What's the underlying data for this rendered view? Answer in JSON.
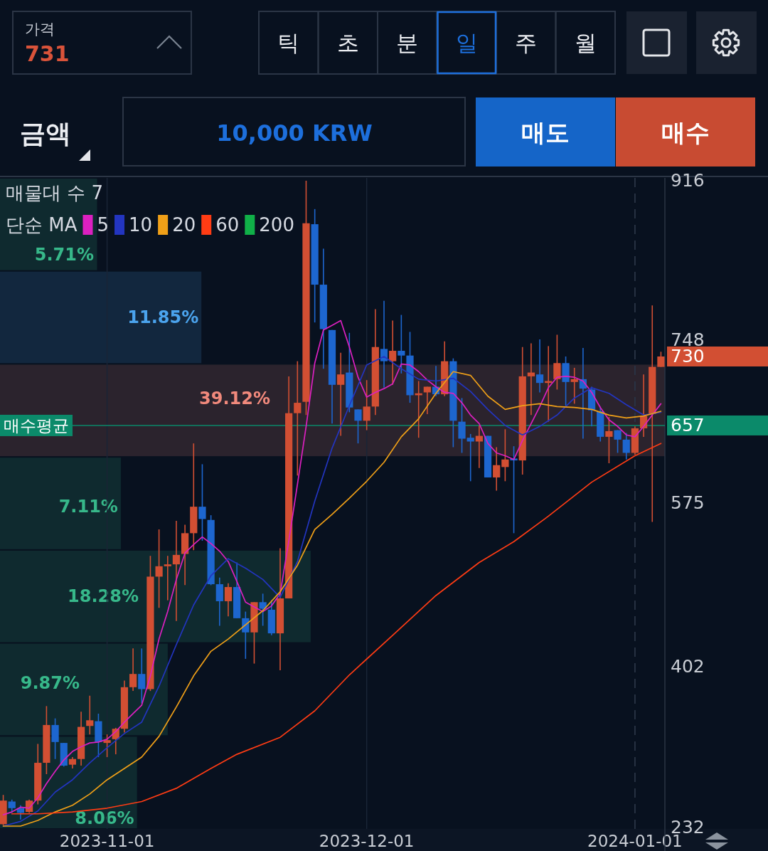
{
  "chart_data": [
    {
      "type": "other",
      "annotations": [
        "가격",
        "731",
        "틱",
        "초",
        "분",
        "일",
        "주",
        "월",
        "금액",
        "10,000 KRW",
        "매도",
        "매수"
      ]
    },
    {
      "type": "candlestick",
      "legend_title": "단순 MA",
      "legend": "top left",
      "grid": "x",
      "xlim": [
        "2023-10-19T15:00",
        "2024-01-04T11:00"
      ],
      "ylim": [
        230,
        919
      ],
      "xticks": [
        "2023-11-01",
        "2023-12-01",
        "2024-01-01"
      ],
      "yticks": [
        916,
        748,
        730,
        657,
        575,
        402,
        232
      ],
      "x": [
        "2023-10-20",
        "2023-10-21",
        "2023-10-22",
        "2023-10-23",
        "2023-10-24",
        "2023-10-25",
        "2023-10-26",
        "2023-10-27",
        "2023-10-28",
        "2023-10-29",
        "2023-10-30",
        "2023-10-31",
        "2023-11-01",
        "2023-11-02",
        "2023-11-03",
        "2023-11-04",
        "2023-11-05",
        "2023-11-06",
        "2023-11-07",
        "2023-11-08",
        "2023-11-09",
        "2023-11-10",
        "2023-11-11",
        "2023-11-12",
        "2023-11-13",
        "2023-11-14",
        "2023-11-15",
        "2023-11-16",
        "2023-11-17",
        "2023-11-18",
        "2023-11-19",
        "2023-11-20",
        "2023-11-21",
        "2023-11-22",
        "2023-11-23",
        "2023-11-24",
        "2023-11-25",
        "2023-11-26",
        "2023-11-27",
        "2023-11-28",
        "2023-11-29",
        "2023-11-30",
        "2023-12-01",
        "2023-12-02",
        "2023-12-03",
        "2023-12-04",
        "2023-12-05",
        "2023-12-06",
        "2023-12-07",
        "2023-12-08",
        "2023-12-09",
        "2023-12-10",
        "2023-12-11",
        "2023-12-12",
        "2023-12-13",
        "2023-12-14",
        "2023-12-15",
        "2023-12-16",
        "2023-12-17",
        "2023-12-18",
        "2023-12-19",
        "2023-12-20",
        "2023-12-21",
        "2023-12-22",
        "2023-12-23",
        "2023-12-24",
        "2023-12-25",
        "2023-12-26",
        "2023-12-27",
        "2023-12-28",
        "2023-12-29",
        "2023-12-30",
        "2023-12-31",
        "2024-01-01",
        "2024-01-02",
        "2024-01-03",
        "2024-01-04"
      ],
      "ohlc": [
        [
          235,
          266,
          234,
          260
        ],
        [
          259,
          261,
          247,
          252
        ],
        [
          252,
          255,
          240,
          247
        ],
        [
          248,
          261,
          247,
          260
        ],
        [
          260,
          320,
          256,
          300
        ],
        [
          300,
          360,
          288,
          340
        ],
        [
          340,
          347,
          304,
          322
        ],
        [
          321,
          321,
          296,
          297
        ],
        [
          298,
          306,
          294,
          304
        ],
        [
          304,
          354,
          297,
          338
        ],
        [
          339,
          371,
          330,
          345
        ],
        [
          344,
          352,
          306,
          322
        ],
        [
          321,
          330,
          306,
          324
        ],
        [
          325,
          337,
          309,
          336
        ],
        [
          336,
          387,
          332,
          380
        ],
        [
          380,
          421,
          376,
          394
        ],
        [
          394,
          421,
          363,
          378
        ],
        [
          378,
          519,
          376,
          497
        ],
        [
          497,
          547,
          464,
          508
        ],
        [
          508,
          519,
          472,
          510
        ],
        [
          510,
          556,
          450,
          520
        ],
        [
          521,
          552,
          488,
          543
        ],
        [
          543,
          638,
          525,
          571
        ],
        [
          571,
          616,
          535,
          558
        ],
        [
          557,
          562,
          488,
          489
        ],
        [
          489,
          496,
          445,
          471
        ],
        [
          471,
          490,
          455,
          486
        ],
        [
          486,
          512,
          453,
          453
        ],
        [
          453,
          460,
          410,
          438
        ],
        [
          438,
          470,
          405,
          470
        ],
        [
          470,
          479,
          445,
          463
        ],
        [
          462,
          472,
          435,
          437
        ],
        [
          437,
          527,
          398,
          474
        ],
        [
          474,
          709,
          474,
          670
        ],
        [
          670,
          725,
          604,
          681
        ],
        [
          682,
          916,
          668,
          871
        ],
        [
          870,
          886,
          766,
          806
        ],
        [
          806,
          844,
          717,
          759
        ],
        [
          758,
          758,
          659,
          700
        ],
        [
          700,
          734,
          646,
          711
        ],
        [
          713,
          755,
          671,
          676
        ],
        [
          674,
          674,
          638,
          662
        ],
        [
          662,
          705,
          652,
          677
        ],
        [
          677,
          780,
          668,
          740
        ],
        [
          738,
          789,
          697,
          725
        ],
        [
          725,
          768,
          700,
          736
        ],
        [
          736,
          774,
          712,
          731
        ],
        [
          731,
          756,
          681,
          689
        ],
        [
          689,
          704,
          644,
          691
        ],
        [
          692,
          698,
          669,
          698
        ],
        [
          698,
          720,
          688,
          690
        ],
        [
          690,
          746,
          688,
          725
        ],
        [
          725,
          728,
          634,
          662
        ],
        [
          661,
          686,
          628,
          643
        ],
        [
          644,
          648,
          598,
          640
        ],
        [
          640,
          657,
          612,
          646
        ],
        [
          646,
          646,
          602,
          602
        ],
        [
          602,
          634,
          588,
          615
        ],
        [
          613,
          653,
          598,
          621
        ],
        [
          622,
          635,
          543,
          620
        ],
        [
          620,
          740,
          605,
          709
        ],
        [
          709,
          744,
          668,
          713
        ],
        [
          711,
          748,
          692,
          702
        ],
        [
          702,
          741,
          661,
          704
        ],
        [
          706,
          753,
          695,
          723
        ],
        [
          723,
          730,
          678,
          703
        ],
        [
          703,
          718,
          680,
          706
        ],
        [
          706,
          739,
          643,
          696
        ],
        [
          695,
          698,
          656,
          673
        ],
        [
          672,
          677,
          640,
          645
        ],
        [
          645,
          666,
          617,
          651
        ],
        [
          652,
          652,
          628,
          642
        ],
        [
          642,
          649,
          621,
          628
        ],
        [
          628,
          656,
          626,
          654
        ],
        [
          654,
          711,
          645,
          667
        ],
        [
          669,
          784,
          555,
          719
        ],
        [
          719,
          735,
          719,
          730
        ]
      ],
      "series": [
        {
          "name": "5",
          "type": "line",
          "color": "#dc20c0",
          "values": [
            245,
            248,
            253,
            252,
            263,
            278,
            291,
            303,
            312,
            317,
            321,
            322,
            325,
            333,
            343,
            352,
            361,
            392,
            431,
            460,
            494,
            522,
            531,
            539,
            532,
            524,
            513,
            492,
            470,
            465,
            460,
            466,
            479,
            535,
            595,
            656,
            723,
            758,
            763,
            768,
            740,
            708,
            687,
            692,
            696,
            701,
            722,
            721,
            714,
            705,
            698,
            692,
            691,
            681,
            668,
            659,
            638,
            628,
            625,
            621,
            641,
            659,
            677,
            697,
            708,
            709,
            708,
            704,
            692,
            676,
            663,
            656,
            647,
            645,
            656,
            668,
            680
          ]
        },
        {
          "name": "10",
          "type": "line",
          "color": "#2335c0",
          "x": [
            "2023-10-20",
            "2023-10-22",
            "2023-10-24",
            "2023-10-26",
            "2023-10-28",
            "2023-10-30",
            "2023-11-01",
            "2023-11-03",
            "2023-11-05",
            "2023-11-07",
            "2023-11-09",
            "2023-11-11",
            "2023-11-13",
            "2023-11-15",
            "2023-11-17",
            "2023-11-19",
            "2023-11-21",
            "2023-11-23",
            "2023-11-25",
            "2023-11-27",
            "2023-11-29",
            "2023-12-01",
            "2023-12-03",
            "2023-12-05",
            "2023-12-07",
            "2023-12-09",
            "2023-12-11",
            "2023-12-13",
            "2023-12-15",
            "2023-12-17",
            "2023-12-19",
            "2023-12-21",
            "2023-12-23",
            "2023-12-25",
            "2023-12-27",
            "2023-12-29",
            "2023-12-31",
            "2024-01-02",
            "2024-01-04"
          ],
          "values": [
            233,
            238,
            249,
            269,
            282,
            300,
            316,
            331,
            343,
            381,
            425,
            467,
            498,
            516,
            506,
            494,
            475,
            513,
            577,
            633,
            678,
            721,
            730,
            717,
            706,
            704,
            707,
            693,
            674,
            657,
            647,
            656,
            668,
            686,
            697,
            691,
            679,
            668,
            671
          ]
        },
        {
          "name": "20",
          "type": "line",
          "color": "#f0a018",
          "x": [
            "2023-10-20",
            "2023-10-22",
            "2023-10-24",
            "2023-10-26",
            "2023-10-28",
            "2023-10-30",
            "2023-11-01",
            "2023-11-03",
            "2023-11-05",
            "2023-11-07",
            "2023-11-09",
            "2023-11-11",
            "2023-11-13",
            "2023-11-15",
            "2023-11-17",
            "2023-11-19",
            "2023-11-21",
            "2023-11-23",
            "2023-11-25",
            "2023-11-27",
            "2023-11-29",
            "2023-12-01",
            "2023-12-03",
            "2023-12-05",
            "2023-12-07",
            "2023-12-09",
            "2023-12-11",
            "2023-12-13",
            "2023-12-15",
            "2023-12-17",
            "2023-12-19",
            "2023-12-21",
            "2023-12-23",
            "2023-12-25",
            "2023-12-27",
            "2023-12-29",
            "2023-12-31",
            "2024-01-02",
            "2024-01-04"
          ],
          "values": [
            233,
            233,
            239,
            248,
            255,
            267,
            282,
            294,
            306,
            328,
            359,
            392,
            418,
            431,
            446,
            461,
            481,
            509,
            547,
            563,
            580,
            598,
            618,
            645,
            664,
            691,
            714,
            710,
            688,
            674,
            678,
            680,
            677,
            676,
            674,
            668,
            665,
            667,
            672
          ]
        },
        {
          "name": "60",
          "type": "line",
          "color": "#ff3c14",
          "x": [
            "2023-10-21",
            "2023-10-24",
            "2023-10-28",
            "2023-11-01",
            "2023-11-05",
            "2023-11-09",
            "2023-11-13",
            "2023-11-16",
            "2023-11-21",
            "2023-11-25",
            "2023-11-29",
            "2023-12-04",
            "2023-12-09",
            "2023-12-14",
            "2023-12-18",
            "2023-12-22",
            "2023-12-27",
            "2024-01-01",
            "2024-01-04"
          ],
          "values": [
            246,
            246,
            248,
            252,
            259,
            273,
            294,
            309,
            327,
            355,
            393,
            435,
            477,
            512,
            534,
            561,
            597,
            625,
            638
          ]
        },
        {
          "name": "200",
          "type": "line",
          "color": "#10b048",
          "values": [
            null,
            null,
            null,
            null,
            null,
            null,
            null,
            null,
            null,
            null,
            null,
            null,
            null,
            null,
            null,
            null,
            null,
            null,
            null,
            null,
            null,
            null,
            null,
            null,
            null,
            null,
            null,
            null,
            null,
            null,
            null,
            null,
            null,
            null,
            null,
            null,
            null,
            null,
            null,
            null,
            null,
            null,
            null,
            null,
            null,
            null,
            null,
            null,
            null,
            null,
            null,
            null,
            null,
            null,
            null,
            null,
            null,
            null,
            null,
            null,
            null,
            null,
            null,
            null,
            null,
            null,
            null,
            null,
            null,
            null,
            null,
            null,
            null,
            null,
            null,
            null,
            null
          ]
        }
      ],
      "ref_lines": [
        {
          "axis": "y",
          "value": 657,
          "label": "매수평균",
          "color": "#0b8a6a"
        },
        {
          "axis": "x",
          "value": "2024-01-01",
          "color": "#2a3546",
          "line_style": "dashed"
        }
      ]
    },
    {
      "type": "bar",
      "orientation": "horizontal",
      "title": "매물대 수 7",
      "categories": [
        null,
        null,
        null,
        null,
        null,
        null,
        null
      ],
      "values": [
        5.71,
        11.85,
        39.12,
        7.11,
        18.28,
        9.87,
        8.06
      ],
      "colors": [
        "#0f2a2f",
        "#12273e",
        "#2b232d",
        "#0f2a2f",
        "#0f2a2f",
        "#0f2a2f",
        "#0f2a2f"
      ],
      "value_labels": [
        "5.71%",
        "11.85%",
        "39.12%",
        "7.11%",
        "18.28%",
        "9.87%",
        "8.06%"
      ]
    }
  ]
}
